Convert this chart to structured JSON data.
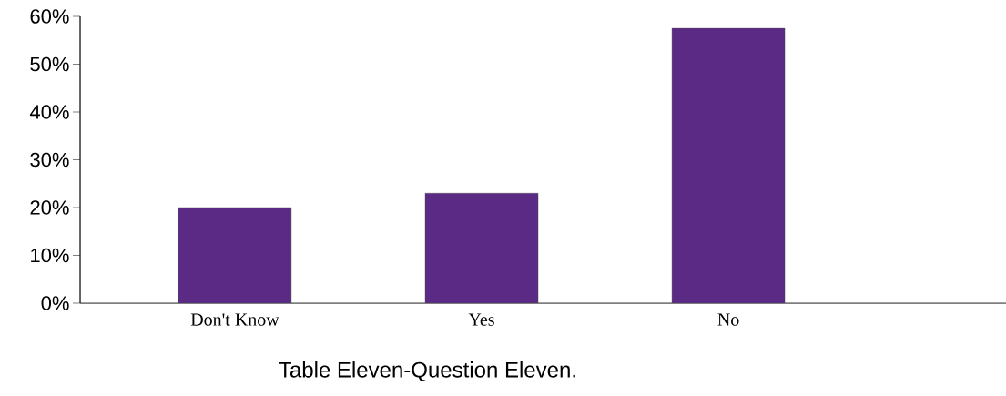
{
  "chart_data": {
    "type": "bar",
    "categories": [
      "Don't Know",
      "Yes",
      "No"
    ],
    "values": [
      20,
      23,
      57.5
    ],
    "color": "#5a2a85",
    "ylim": [
      0,
      60
    ],
    "yticks": [
      {
        "value": 0,
        "label": "0%"
      },
      {
        "value": 10,
        "label": "10%"
      },
      {
        "value": 20,
        "label": "20%"
      },
      {
        "value": 30,
        "label": "30%"
      },
      {
        "value": 40,
        "label": "40%"
      },
      {
        "value": 50,
        "label": "50%"
      },
      {
        "value": 60,
        "label": "60%"
      }
    ],
    "annotations": [
      "Table Eleven-Question Eleven."
    ]
  }
}
